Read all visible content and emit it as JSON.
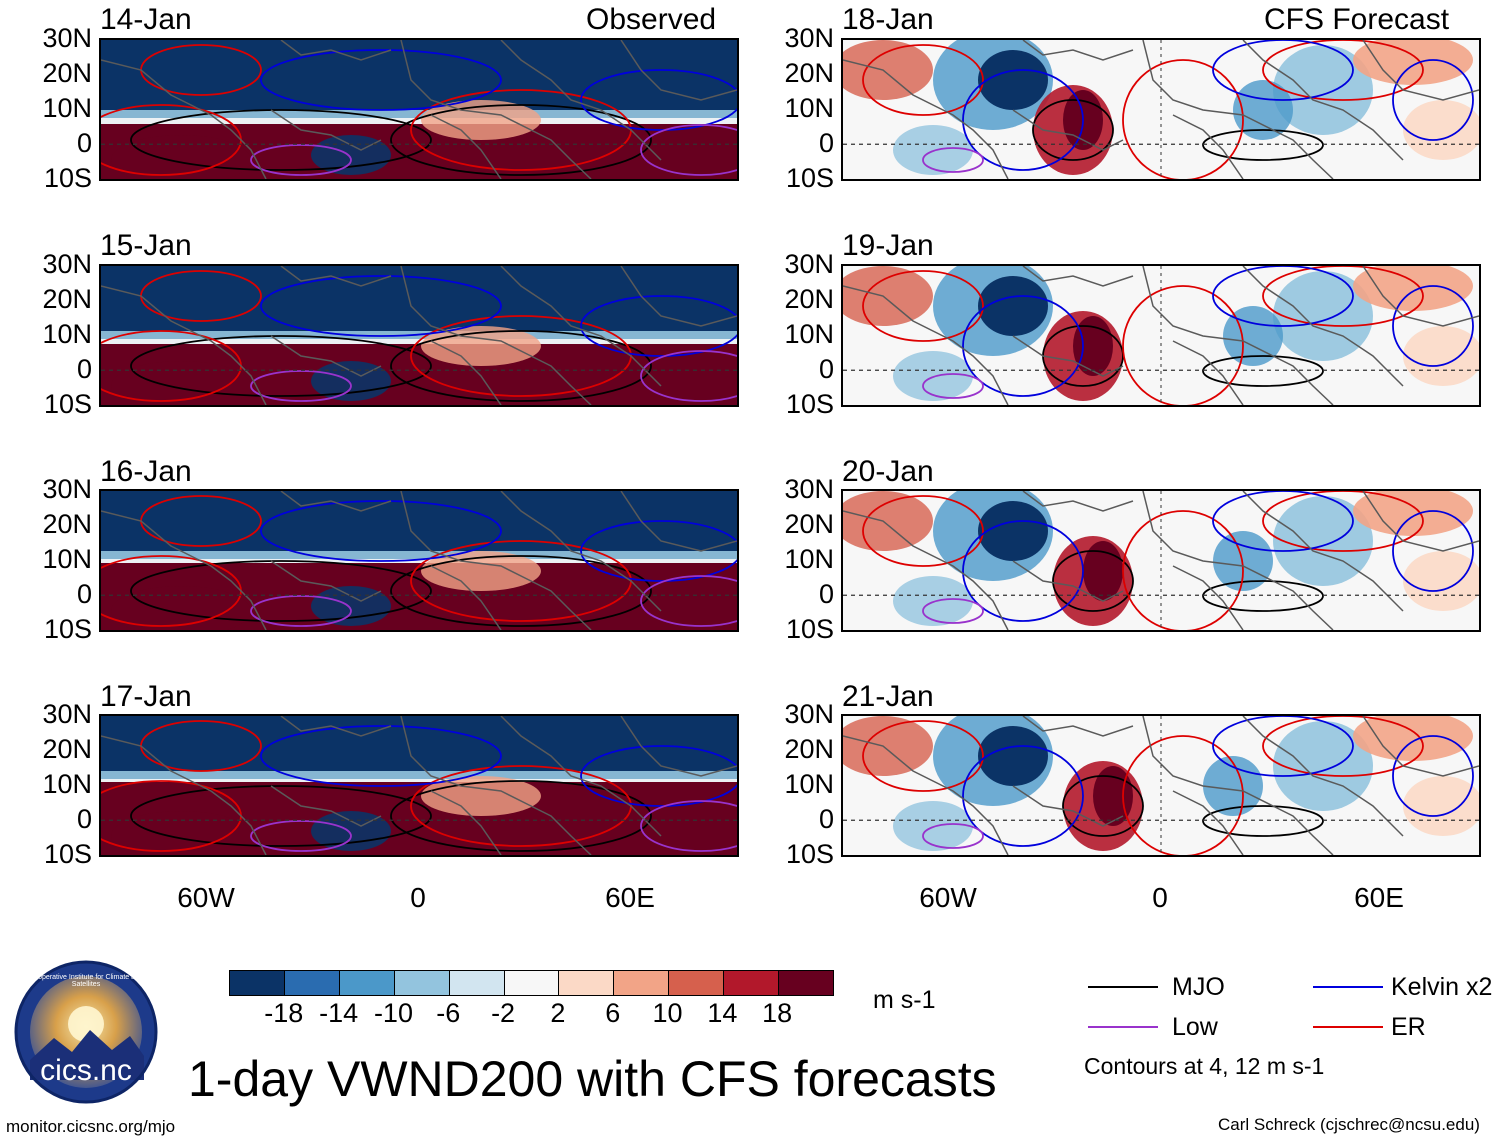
{
  "headers": {
    "observed": "Observed",
    "forecast": "CFS Forecast"
  },
  "panels": {
    "observed": [
      {
        "date": "14-Jan"
      },
      {
        "date": "15-Jan"
      },
      {
        "date": "16-Jan"
      },
      {
        "date": "17-Jan"
      }
    ],
    "forecast": [
      {
        "date": "18-Jan"
      },
      {
        "date": "19-Jan"
      },
      {
        "date": "20-Jan"
      },
      {
        "date": "21-Jan"
      }
    ]
  },
  "lat_labels": [
    "30N",
    "20N",
    "10N",
    "0",
    "10S"
  ],
  "lon_labels": [
    "60W",
    "0",
    "60E"
  ],
  "colorbar": {
    "unit": "m s-1",
    "tick_labels": [
      "-18",
      "-14",
      "-10",
      "-6",
      "-2",
      "2",
      "6",
      "10",
      "14",
      "18"
    ],
    "colors": [
      "#0b3366",
      "#2a6cb0",
      "#4b98c9",
      "#93c4de",
      "#d2e5f0",
      "#f7f7f7",
      "#fbd9c6",
      "#f2a487",
      "#d6604d",
      "#b2182b",
      "#67001f"
    ]
  },
  "legend": {
    "items": [
      {
        "label": "MJO",
        "color": "#000000"
      },
      {
        "label": "Kelvin x2",
        "color": "#0000dd"
      },
      {
        "label": "Low",
        "color": "#9933cc"
      },
      {
        "label": "ER",
        "color": "#dd0000"
      }
    ],
    "note": "Contours at 4, 12 m s-1"
  },
  "title": "1-day VWND200 with CFS forecasts",
  "logo": {
    "text": "cics.nc",
    "ring_text": "Cooperative Institute for Climate and Satellites"
  },
  "footer": {
    "left": "monitor.cicsnc.org/mjo",
    "right": "Carl Schreck (cjschrec@ncsu.edu)"
  }
}
